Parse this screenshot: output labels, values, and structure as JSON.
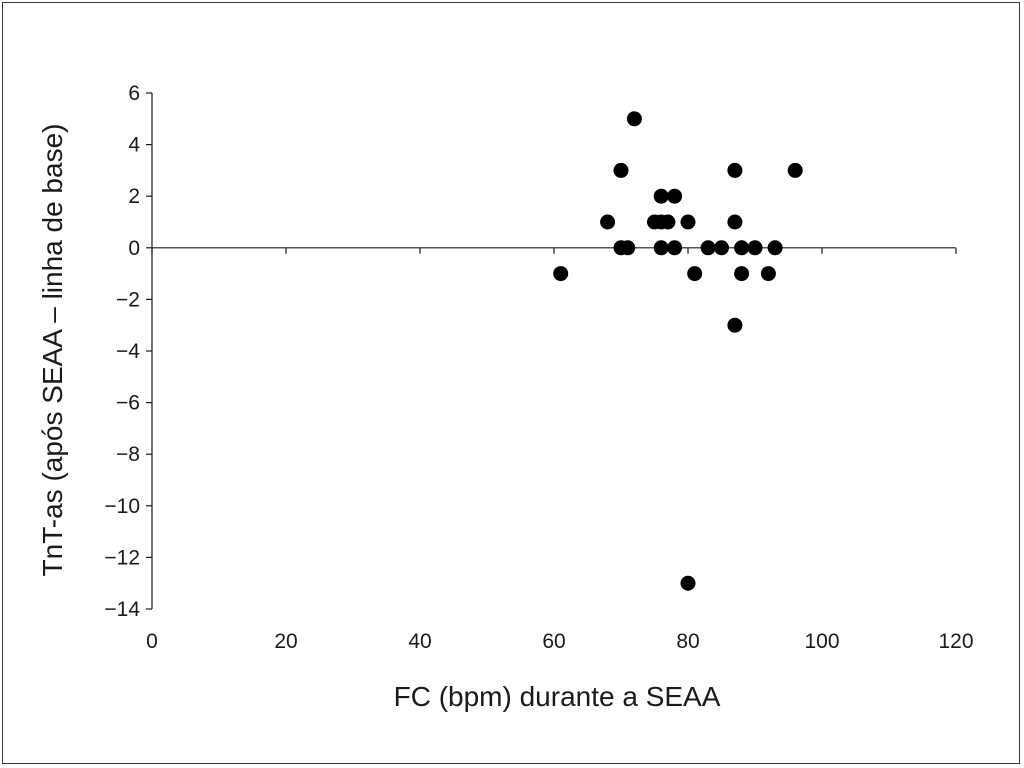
{
  "chart_data": {
    "type": "scatter",
    "xlabel": "FC (bpm) durante a SEAA",
    "ylabel": "TnT-as (após SEAA – linha de base)",
    "xlim": [
      0,
      120
    ],
    "ylim": [
      -14,
      6
    ],
    "x_ticks": [
      0,
      20,
      40,
      60,
      80,
      100,
      120
    ],
    "y_ticks": [
      6,
      4,
      2,
      0,
      -2,
      -4,
      -6,
      -8,
      -10,
      -12,
      -14
    ],
    "x_tick_labels": [
      "0",
      "20",
      "40",
      "60",
      "80",
      "100",
      "120"
    ],
    "y_tick_labels": [
      "6",
      "4",
      "2",
      "0",
      "−2",
      "−4",
      "−6",
      "−8",
      "−10",
      "−12",
      "−14"
    ],
    "grid": false,
    "points": [
      {
        "x": 61,
        "y": -1
      },
      {
        "x": 68,
        "y": 1
      },
      {
        "x": 70,
        "y": 3
      },
      {
        "x": 70,
        "y": 0
      },
      {
        "x": 71,
        "y": 0
      },
      {
        "x": 72,
        "y": 5
      },
      {
        "x": 75,
        "y": 1
      },
      {
        "x": 76,
        "y": 2
      },
      {
        "x": 76,
        "y": 1
      },
      {
        "x": 76,
        "y": 0
      },
      {
        "x": 77,
        "y": 1
      },
      {
        "x": 78,
        "y": 2
      },
      {
        "x": 78,
        "y": 0
      },
      {
        "x": 80,
        "y": 1
      },
      {
        "x": 80,
        "y": -13
      },
      {
        "x": 81,
        "y": -1
      },
      {
        "x": 83,
        "y": 0
      },
      {
        "x": 85,
        "y": 0
      },
      {
        "x": 87,
        "y": 3
      },
      {
        "x": 87,
        "y": 1
      },
      {
        "x": 87,
        "y": -3
      },
      {
        "x": 88,
        "y": 0
      },
      {
        "x": 88,
        "y": -1
      },
      {
        "x": 90,
        "y": 0
      },
      {
        "x": 92,
        "y": -1
      },
      {
        "x": 93,
        "y": 0
      },
      {
        "x": 96,
        "y": 3
      }
    ]
  }
}
